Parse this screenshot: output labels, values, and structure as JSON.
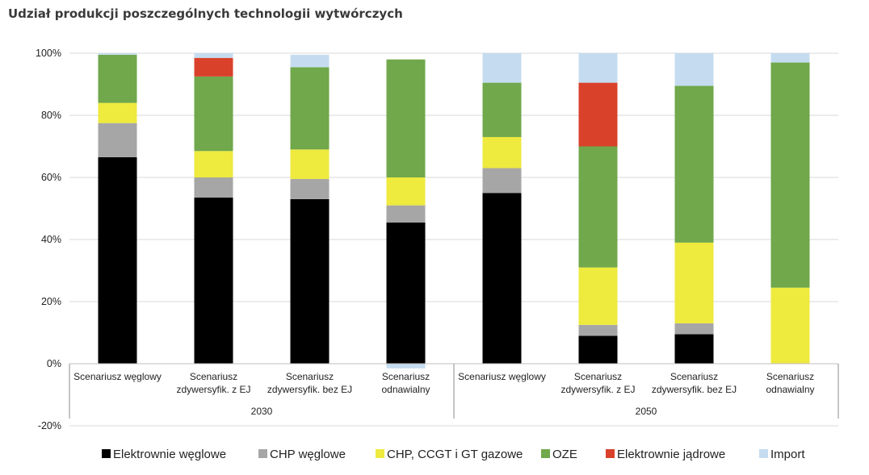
{
  "chart_data": {
    "type": "bar",
    "stacked": true,
    "title": "Udział produkcji poszczególnych technologii wytwórczych",
    "ylim": [
      -20,
      100
    ],
    "yticks": [
      "-20%",
      "0%",
      "20%",
      "40%",
      "60%",
      "80%",
      "100%"
    ],
    "grid": true,
    "legend_position": "bottom",
    "groups": [
      {
        "label": "2030",
        "categories": [
          {
            "label": [
              "Scenariusz węglowy"
            ]
          },
          {
            "label": [
              "Scenariusz",
              "zdywersyfik. z EJ"
            ]
          },
          {
            "label": [
              "Scenariusz",
              "zdywersyfik. bez EJ"
            ]
          },
          {
            "label": [
              "Scenariusz",
              "odnawialny"
            ]
          }
        ]
      },
      {
        "label": "2050",
        "categories": [
          {
            "label": [
              "Scenariusz węglowy"
            ]
          },
          {
            "label": [
              "Scenariusz",
              "zdywersyfik. z EJ"
            ]
          },
          {
            "label": [
              "Scenariusz",
              "zdywersyfik. bez EJ"
            ]
          },
          {
            "label": [
              "Scenariusz",
              "odnawialny"
            ]
          }
        ]
      }
    ],
    "series": [
      {
        "name": "Elektrownie węglowe",
        "color": "#000000",
        "values": [
          66.5,
          53.5,
          53,
          45.5,
          55,
          9,
          9.5,
          0
        ]
      },
      {
        "name": "CHP węglowe",
        "color": "#a6a6a6",
        "values": [
          11,
          6.5,
          6.5,
          5.5,
          8,
          3.5,
          3.5,
          0
        ]
      },
      {
        "name": "CHP, CCGT i GT gazowe",
        "color": "#eeea3e",
        "values": [
          6.5,
          8.5,
          9.5,
          9,
          10,
          18.5,
          26,
          24.5
        ]
      },
      {
        "name": "OZE",
        "color": "#70a84b",
        "values": [
          15.5,
          24,
          26.5,
          38,
          17.5,
          39,
          50.5,
          72.5
        ]
      },
      {
        "name": "Elektrownie jądrowe",
        "color": "#d9412b",
        "values": [
          0,
          6,
          0,
          0,
          0,
          20.5,
          0,
          0
        ]
      },
      {
        "name": "Import",
        "color": "#c5dcf0",
        "values": [
          0.5,
          1.5,
          4,
          -1.5,
          9.5,
          9.5,
          10.5,
          3
        ]
      }
    ]
  }
}
